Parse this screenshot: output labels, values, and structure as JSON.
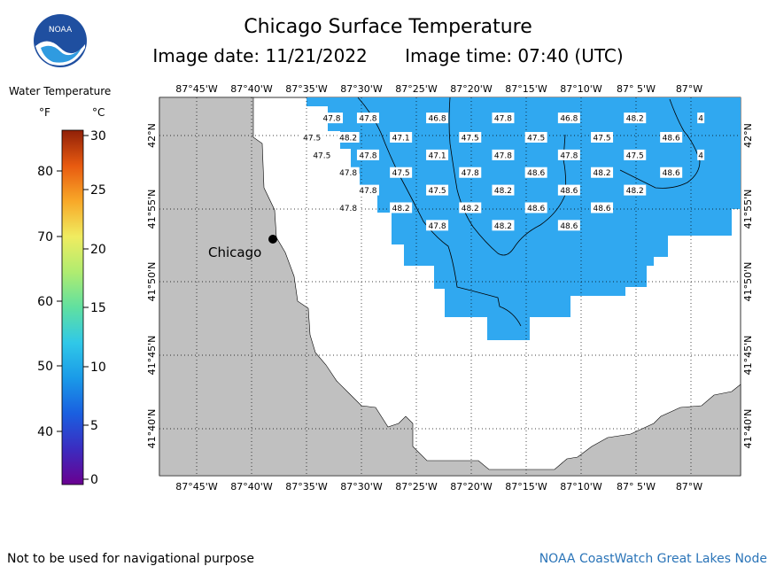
{
  "header": {
    "title": "Chicago Surface Temperature",
    "image_date": "Image date: 11/21/2022",
    "image_time": "Image time: 07:40 (UTC)",
    "logo_text": "NOAA"
  },
  "legend": {
    "title": "Water Temperature",
    "unit_f": "°F",
    "unit_c": "°C",
    "f_ticks": [
      "80",
      "70",
      "60",
      "50",
      "40"
    ],
    "c_ticks": [
      "30",
      "25",
      "20",
      "15",
      "10",
      "5",
      "0"
    ]
  },
  "map": {
    "lon_labels": [
      "87°45'W",
      "87°40'W",
      "87°35'W",
      "87°30'W",
      "87°25'W",
      "87°20'W",
      "87°15'W",
      "87°10'W",
      "87° 5'W",
      "87°W"
    ],
    "lat_labels": [
      "42°N",
      "41°55'N",
      "41°50'N",
      "41°45'N",
      "41°40'N"
    ],
    "city_label": "Chicago",
    "land_color": "#c0c0c0",
    "water_color": "#30a8f0",
    "temperature_labels": [
      {
        "lon": -87.545,
        "lat": 42.02,
        "value": "47.8"
      },
      {
        "lon": -87.49,
        "lat": 42.02,
        "value": "47.8"
      },
      {
        "lon": -87.385,
        "lat": 42.02,
        "value": "46.8"
      },
      {
        "lon": -87.285,
        "lat": 42.02,
        "value": "47.8"
      },
      {
        "lon": -87.185,
        "lat": 42.02,
        "value": "46.8"
      },
      {
        "lon": -87.085,
        "lat": 42.02,
        "value": "48.2"
      },
      {
        "lon": -86.985,
        "lat": 42.02,
        "value": "4"
      },
      {
        "lon": -87.575,
        "lat": 41.998,
        "value": "47.5"
      },
      {
        "lon": -87.52,
        "lat": 41.998,
        "value": "48.2"
      },
      {
        "lon": -87.44,
        "lat": 41.998,
        "value": "47.1"
      },
      {
        "lon": -87.335,
        "lat": 41.998,
        "value": "47.5"
      },
      {
        "lon": -87.235,
        "lat": 41.998,
        "value": "47.5"
      },
      {
        "lon": -87.135,
        "lat": 41.998,
        "value": "47.5"
      },
      {
        "lon": -87.03,
        "lat": 41.998,
        "value": "48.6"
      },
      {
        "lon": -87.56,
        "lat": 41.978,
        "value": "47.5"
      },
      {
        "lon": -87.49,
        "lat": 41.978,
        "value": "47.8"
      },
      {
        "lon": -87.385,
        "lat": 41.978,
        "value": "47.1"
      },
      {
        "lon": -87.285,
        "lat": 41.978,
        "value": "47.8"
      },
      {
        "lon": -87.185,
        "lat": 41.978,
        "value": "47.8"
      },
      {
        "lon": -87.085,
        "lat": 41.978,
        "value": "47.5"
      },
      {
        "lon": -86.985,
        "lat": 41.978,
        "value": "4"
      },
      {
        "lon": -87.52,
        "lat": 41.958,
        "value": "47.8"
      },
      {
        "lon": -87.44,
        "lat": 41.958,
        "value": "47.5"
      },
      {
        "lon": -87.335,
        "lat": 41.958,
        "value": "47.8"
      },
      {
        "lon": -87.235,
        "lat": 41.958,
        "value": "48.6"
      },
      {
        "lon": -87.135,
        "lat": 41.958,
        "value": "48.2"
      },
      {
        "lon": -87.03,
        "lat": 41.958,
        "value": "48.6"
      },
      {
        "lon": -87.49,
        "lat": 41.938,
        "value": "47.8"
      },
      {
        "lon": -87.385,
        "lat": 41.938,
        "value": "47.5"
      },
      {
        "lon": -87.285,
        "lat": 41.938,
        "value": "48.2"
      },
      {
        "lon": -87.185,
        "lat": 41.938,
        "value": "48.6"
      },
      {
        "lon": -87.085,
        "lat": 41.938,
        "value": "48.2"
      },
      {
        "lon": -87.52,
        "lat": 41.918,
        "value": "47.8"
      },
      {
        "lon": -87.44,
        "lat": 41.918,
        "value": "48.2"
      },
      {
        "lon": -87.335,
        "lat": 41.918,
        "value": "48.2"
      },
      {
        "lon": -87.235,
        "lat": 41.918,
        "value": "48.6"
      },
      {
        "lon": -87.135,
        "lat": 41.918,
        "value": "48.6"
      },
      {
        "lon": -87.385,
        "lat": 41.898,
        "value": "47.8"
      },
      {
        "lon": -87.285,
        "lat": 41.898,
        "value": "48.2"
      },
      {
        "lon": -87.185,
        "lat": 41.898,
        "value": "48.6"
      }
    ]
  },
  "footer": {
    "left": "Not to be used for navigational purpose",
    "right": "NOAA CoastWatch Great Lakes Node"
  }
}
